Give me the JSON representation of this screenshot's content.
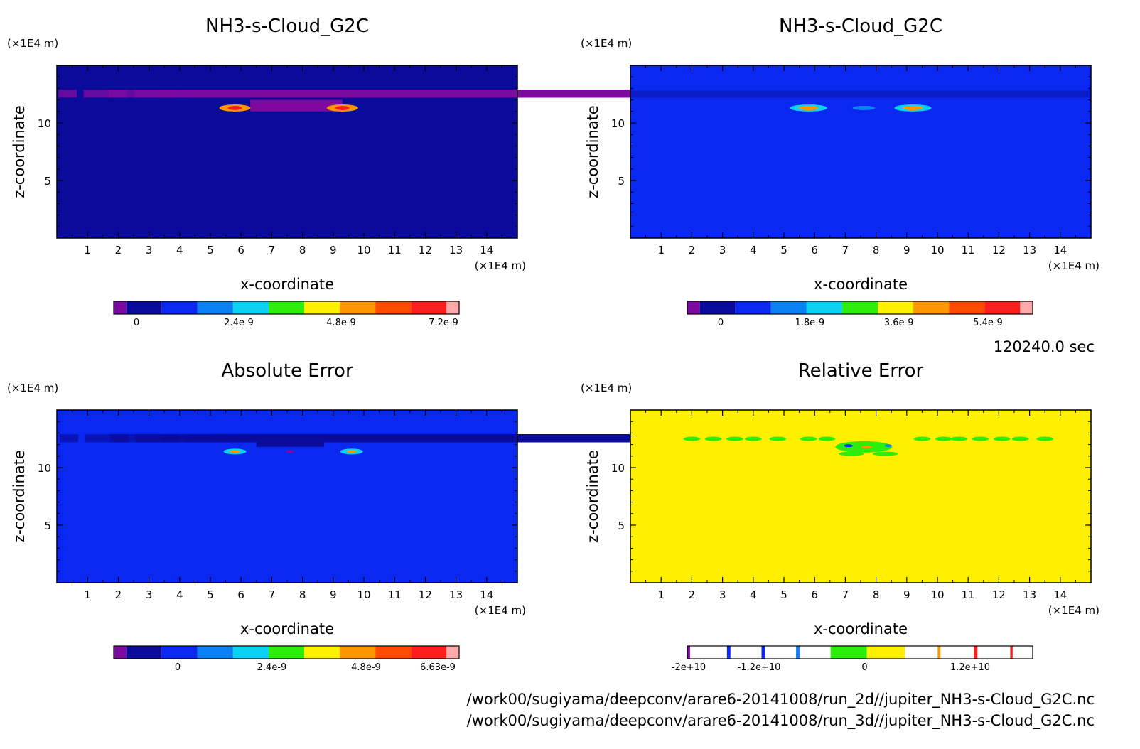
{
  "colors": {
    "purple": "#7c0aa0",
    "navy": "#0a0a9b",
    "blue": "#0a28f0",
    "mid_blue": "#0a82f5",
    "cyan": "#0ad2f5",
    "green": "#2ded0a",
    "yellow": "#fff000",
    "orange": "#ff9600",
    "red_orange": "#ff4b00",
    "red": "#ff1e1e",
    "pink": "#ffaaaa",
    "relative_bg": "#fff000"
  },
  "time_label": "120240.0 sec",
  "file_paths": [
    "/work00/sugiyama/deepconv/arare6-20141008/run_2d//jupiter_NH3-s-Cloud_G2C.nc",
    "/work00/sugiyama/deepconv/arare6-20141008/run_3d//jupiter_NH3-s-Cloud_G2C.nc"
  ],
  "chart_data": [
    {
      "type": "heatmap",
      "title": "NH3-s-Cloud_G2C",
      "xlabel": "x-coordinate",
      "ylabel": "z-coordinate",
      "x_unit": "(×1E4 m)",
      "y_unit": "(×1E4 m)",
      "xlim": [
        0,
        15
      ],
      "ylim": [
        0,
        15
      ],
      "x_ticks": [
        "1",
        "2",
        "3",
        "4",
        "5",
        "6",
        "7",
        "8",
        "9",
        "10",
        "11",
        "12",
        "13",
        "14"
      ],
      "y_ticks": [
        "5",
        "10"
      ],
      "background": "navy",
      "colorbar": {
        "colors": [
          "purple",
          "navy",
          "blue",
          "mid_blue",
          "cyan",
          "green",
          "yellow",
          "orange",
          "red_orange",
          "red",
          "pink"
        ],
        "labels": [
          "0",
          "2.4e-9",
          "4.8e-9",
          "7.2e-9"
        ],
        "label_values": [
          0,
          2.4e-09,
          4.8e-09,
          7.2e-09
        ]
      }
    },
    {
      "type": "heatmap",
      "title": "NH3-s-Cloud_G2C",
      "xlabel": "x-coordinate",
      "ylabel": "z-coordinate",
      "x_unit": "(×1E4 m)",
      "y_unit": "(×1E4 m)",
      "xlim": [
        0,
        15
      ],
      "ylim": [
        0,
        15
      ],
      "x_ticks": [
        "1",
        "2",
        "3",
        "4",
        "5",
        "6",
        "7",
        "8",
        "9",
        "10",
        "11",
        "12",
        "13",
        "14"
      ],
      "y_ticks": [
        "5",
        "10"
      ],
      "background": "blue",
      "colorbar": {
        "colors": [
          "purple",
          "navy",
          "blue",
          "mid_blue",
          "cyan",
          "green",
          "yellow",
          "orange",
          "red_orange",
          "red",
          "pink"
        ],
        "labels": [
          "0",
          "1.8e-9",
          "3.6e-9",
          "5.4e-9"
        ],
        "label_values": [
          0,
          1.8e-09,
          3.6e-09,
          5.4e-09
        ]
      }
    },
    {
      "type": "heatmap",
      "title": "Absolute Error",
      "xlabel": "x-coordinate",
      "ylabel": "z-coordinate",
      "x_unit": "(×1E4 m)",
      "y_unit": "(×1E4 m)",
      "xlim": [
        0,
        15
      ],
      "ylim": [
        0,
        15
      ],
      "x_ticks": [
        "1",
        "2",
        "3",
        "4",
        "5",
        "6",
        "7",
        "8",
        "9",
        "10",
        "11",
        "12",
        "13",
        "14"
      ],
      "y_ticks": [
        "5",
        "10"
      ],
      "background": "blue",
      "colorbar": {
        "colors": [
          "purple",
          "navy",
          "blue",
          "mid_blue",
          "cyan",
          "green",
          "yellow",
          "orange",
          "red_orange",
          "red",
          "pink"
        ],
        "labels": [
          "0",
          "2.4e-9",
          "4.8e-9",
          "6.63e-9"
        ],
        "label_values": [
          0,
          2.4e-09,
          4.8e-09,
          6.63e-09
        ]
      }
    },
    {
      "type": "heatmap",
      "title": "Relative Error",
      "xlabel": "x-coordinate",
      "ylabel": "z-coordinate",
      "x_unit": "(×1E4 m)",
      "y_unit": "(×1E4 m)",
      "xlim": [
        0,
        15
      ],
      "ylim": [
        0,
        15
      ],
      "x_ticks": [
        "1",
        "2",
        "3",
        "4",
        "5",
        "6",
        "7",
        "8",
        "9",
        "10",
        "11",
        "12",
        "13",
        "14"
      ],
      "y_ticks": [
        "5",
        "10"
      ],
      "background": "relative_bg",
      "colorbar": {
        "colors": [
          "purple",
          "white",
          "blue",
          "white",
          "mid_blue",
          "white",
          "cyan",
          "white",
          "green",
          "yellow",
          "white",
          "orange",
          "white",
          "red",
          "white",
          "red",
          "white"
        ],
        "labels": [
          "-2e+10",
          "-1.2e+10",
          "0",
          "1.2e+10"
        ],
        "label_values": [
          -20000000000.0,
          -12000000000.0,
          0,
          12000000000.0
        ]
      }
    }
  ]
}
